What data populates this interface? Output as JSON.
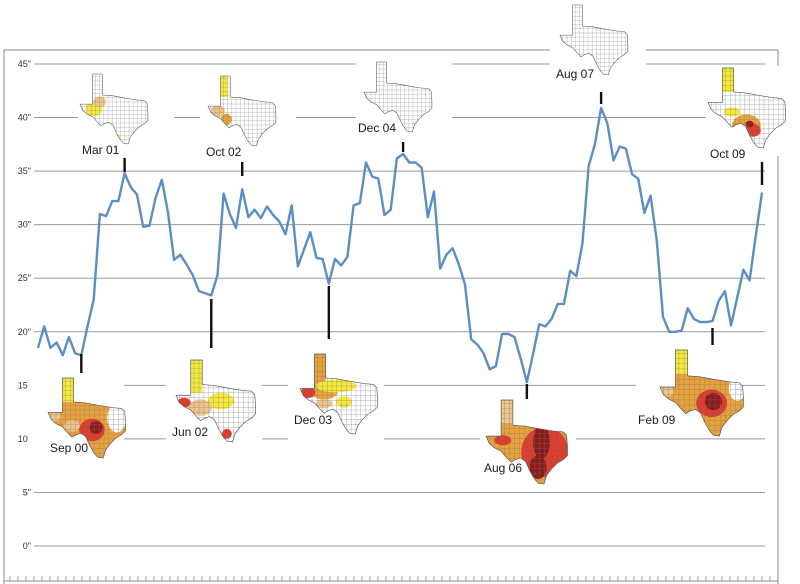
{
  "colors": {
    "line": "#5b8ec6",
    "grid": "#9a9a9a",
    "frame": "#8a8a8a",
    "normal": "#ffffff",
    "abnormally_dry": "#f5e93a",
    "moderate": "#f0c48a",
    "severe": "#e9a23a",
    "extreme": "#e03a2a",
    "exceptional": "#8b1a1a"
  },
  "chart_data": {
    "type": "line",
    "title": "",
    "xlabel": "",
    "ylabel": "",
    "ylim": [
      0,
      45
    ],
    "grid": true,
    "yticks": [
      0,
      5,
      10,
      15,
      20,
      25,
      30,
      35,
      40,
      45
    ],
    "ytick_labels": [
      "0\"",
      "5\"",
      "10\"",
      "15\"",
      "20\"",
      "25\"",
      "30\"",
      "35\"",
      "40\"",
      "45\""
    ],
    "series": [
      {
        "values": [
          18.5,
          20.5,
          18.5,
          19.0,
          17.8,
          19.5,
          18.0,
          17.8,
          20.5,
          23.0,
          31.0,
          30.8,
          32.2,
          32.2,
          34.8,
          33.5,
          32.8,
          29.8,
          29.9,
          32.5,
          34.2,
          31.2,
          26.7,
          27.2,
          26.3,
          25.3,
          23.8,
          23.6,
          23.4,
          25.3,
          32.9,
          31.0,
          29.7,
          33.3,
          30.7,
          31.4,
          30.6,
          31.7,
          30.9,
          30.3,
          29.1,
          31.8,
          26.1,
          27.7,
          29.3,
          26.9,
          26.8,
          24.5,
          26.8,
          26.2,
          27.0,
          31.8,
          32.0,
          35.8,
          34.5,
          34.3,
          30.9,
          31.4,
          36.2,
          36.6,
          35.8,
          35.8,
          35.3,
          30.7,
          33.1,
          25.9,
          27.2,
          27.8,
          26.3,
          24.4,
          19.3,
          18.8,
          18.0,
          16.5,
          16.8,
          19.8,
          19.8,
          19.5,
          17.5,
          15.3,
          17.9,
          20.7,
          20.5,
          21.2,
          22.6,
          22.6,
          25.7,
          25.2,
          28.3,
          35.5,
          37.5,
          40.9,
          39.5,
          36.0,
          37.3,
          37.1,
          34.7,
          34.3,
          31.1,
          32.7,
          28.5,
          21.4,
          20.0,
          20.0,
          20.1,
          22.2,
          21.2,
          20.9,
          20.9,
          21.0,
          22.9,
          23.8,
          20.6,
          23.2,
          25.8,
          24.8,
          29.0,
          33.0
        ]
      }
    ],
    "annotations": [
      {
        "label": "Sep 00",
        "index": 7,
        "position": "below"
      },
      {
        "label": "Mar 01",
        "index": 14,
        "position": "above"
      },
      {
        "label": "Jun 02",
        "index": 28,
        "position": "below"
      },
      {
        "label": "Oct 02",
        "index": 33,
        "position": "above"
      },
      {
        "label": "Dec 03",
        "index": 47,
        "position": "below"
      },
      {
        "label": "Dec 04",
        "index": 59,
        "position": "above"
      },
      {
        "label": "Aug 06",
        "index": 79,
        "position": "below"
      },
      {
        "label": "Aug 07",
        "index": 91,
        "position": "above"
      },
      {
        "label": "Feb 09",
        "index": 109,
        "position": "below"
      },
      {
        "label": "Oct 09",
        "index": 117,
        "position": "above"
      }
    ]
  }
}
